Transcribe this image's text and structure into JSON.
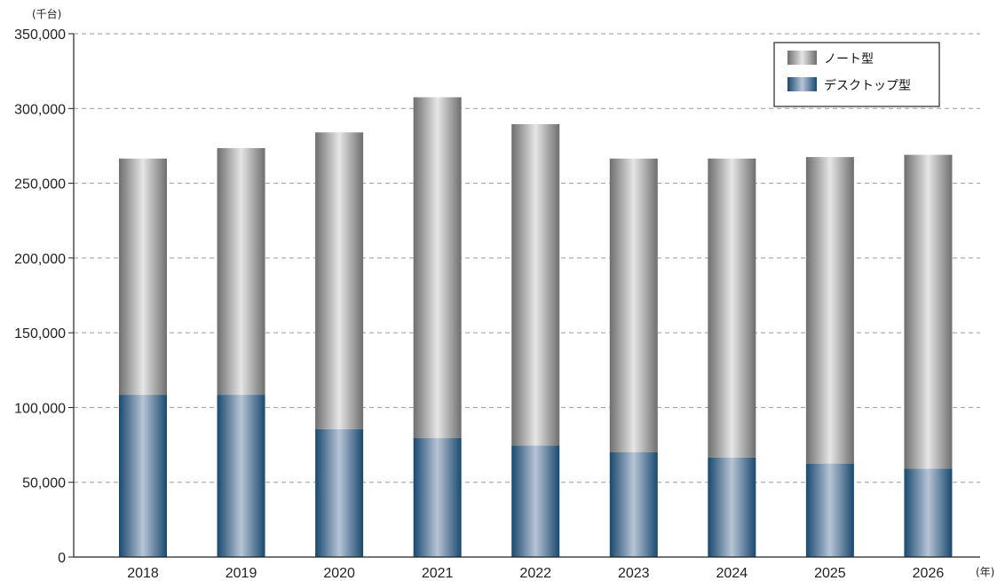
{
  "chart_data": {
    "type": "bar",
    "stacked": true,
    "y_unit_label": "(千台)",
    "x_unit_label": "(年)",
    "categories": [
      "2018",
      "2019",
      "2020",
      "2021",
      "2022",
      "2023",
      "2024",
      "2025",
      "2026"
    ],
    "series": [
      {
        "name": "デスクトップ型",
        "values": [
          108500,
          108500,
          85500,
          79500,
          74500,
          70000,
          66500,
          62500,
          59000
        ]
      },
      {
        "name": "ノート型",
        "values": [
          158000,
          165000,
          198500,
          228000,
          215000,
          196500,
          200000,
          205000,
          210000
        ]
      }
    ],
    "totals": [
      266500,
      273500,
      284000,
      307500,
      289500,
      266500,
      266500,
      267500,
      269000
    ],
    "ylim": [
      0,
      350000
    ],
    "yticks": [
      "0",
      "50,000",
      "100,000",
      "150,000",
      "200,000",
      "250,000",
      "300,000",
      "350,000"
    ],
    "ytick_values": [
      0,
      50000,
      100000,
      150000,
      200000,
      250000,
      300000,
      350000
    ],
    "grid": "horizontal-dashed",
    "legend_position": "top-right",
    "colors": {
      "ノート型": "#8c8c8c",
      "デスクトップ型": "#1f4e74"
    }
  }
}
